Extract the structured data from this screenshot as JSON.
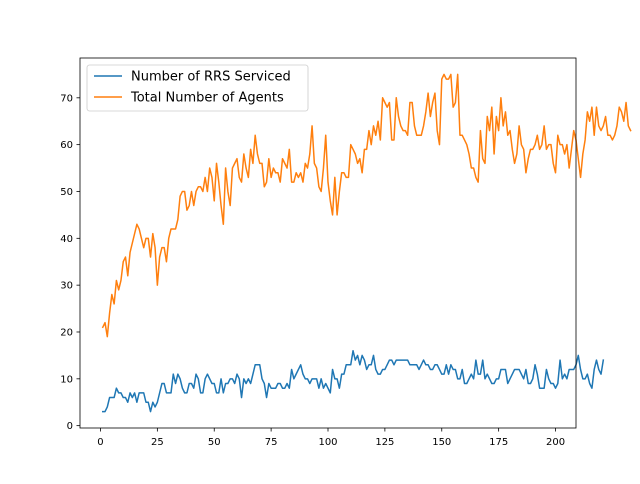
{
  "chart_data": {
    "type": "line",
    "title": "",
    "xlabel": "",
    "ylabel": "",
    "xlim": [
      -9,
      209
    ],
    "ylim": [
      -0.5,
      78.5
    ],
    "x_ticks": [
      0,
      25,
      50,
      75,
      100,
      125,
      150,
      175,
      200
    ],
    "y_ticks": [
      0,
      10,
      20,
      30,
      40,
      50,
      60,
      70
    ],
    "grid": false,
    "legend_position": "top-left",
    "series": [
      {
        "name": "Number of RRS Serviced",
        "color": "#1f77b4",
        "x_start": 1,
        "x_step": 1,
        "values": [
          3,
          3,
          4,
          6,
          6,
          6,
          8,
          7,
          7,
          6,
          6,
          5,
          7,
          6,
          7,
          5,
          7,
          7,
          7,
          5,
          5,
          3,
          5,
          4,
          5,
          7,
          9,
          9,
          7,
          7,
          7,
          11,
          9,
          11,
          10,
          8,
          7,
          7,
          9,
          9,
          8,
          11,
          10,
          7,
          7,
          10,
          11,
          10,
          9,
          9,
          7,
          7,
          10,
          7,
          9,
          9,
          10,
          10,
          9,
          11,
          10,
          6,
          10,
          9,
          10,
          9,
          11,
          13,
          13,
          13,
          10,
          9,
          6,
          9,
          8,
          8,
          8,
          9,
          9,
          8,
          8,
          9,
          8,
          12,
          10,
          11,
          12,
          13,
          11,
          10,
          10,
          9,
          10,
          10,
          10,
          8,
          10,
          8,
          9,
          8,
          7,
          12,
          10,
          10,
          8,
          11,
          11,
          13,
          13,
          13,
          16,
          14,
          15,
          13,
          15,
          14,
          12,
          13,
          13,
          15,
          12,
          11,
          11,
          12,
          12,
          13,
          14,
          14,
          13,
          14,
          14,
          14,
          14,
          14,
          14,
          13,
          13,
          13,
          13,
          12,
          13,
          14,
          13,
          13,
          12,
          12,
          13,
          13,
          12,
          11,
          11,
          13,
          11,
          13,
          12,
          12,
          10,
          10,
          12,
          9,
          9,
          10,
          11,
          10,
          14,
          11,
          11,
          14,
          10,
          11,
          10,
          9,
          9,
          10,
          10,
          12,
          12,
          12,
          9,
          10,
          11,
          12,
          12,
          12,
          11,
          10,
          12,
          9,
          9,
          10,
          13,
          11,
          8,
          8,
          8,
          12,
          10,
          9,
          9,
          8,
          9,
          14,
          10,
          11,
          10,
          12,
          12,
          12,
          13,
          15,
          12,
          10,
          10,
          11,
          9,
          8,
          12,
          14,
          12,
          11,
          14
        ],
        "values_note": ""
      },
      {
        "name": "Total Number of Agents",
        "color": "#ff7f0e",
        "x_start": 1,
        "x_step": 1,
        "values": [
          21,
          22,
          19,
          24,
          28,
          26,
          31,
          29,
          31,
          35,
          36,
          32,
          37,
          39,
          41,
          43,
          42,
          40,
          38,
          40,
          40,
          36,
          41,
          38,
          30,
          36,
          38,
          38,
          35,
          40,
          42,
          42,
          42,
          44,
          49,
          50,
          50,
          46,
          47,
          50,
          47,
          50,
          51,
          51,
          50,
          53,
          50,
          55,
          53,
          48,
          56,
          52,
          47,
          43,
          55,
          50,
          47,
          55,
          56,
          57,
          53,
          52,
          58,
          55,
          53,
          59,
          56,
          62,
          58,
          56,
          56,
          51,
          52,
          57,
          53,
          55,
          54,
          54,
          52,
          57,
          56,
          55,
          59,
          52,
          52,
          54,
          53,
          54,
          52,
          56,
          55,
          58,
          64,
          56,
          55,
          51,
          50,
          55,
          62,
          52,
          48,
          45,
          53,
          45,
          50,
          54,
          54,
          53,
          53,
          60,
          59,
          58,
          56,
          57,
          54,
          59,
          59,
          63,
          60,
          64,
          62,
          65,
          61,
          70,
          69,
          68,
          69,
          61,
          61,
          70,
          66,
          64,
          63,
          63,
          62,
          69,
          69,
          64,
          62,
          62,
          62,
          64,
          67,
          71,
          66,
          69,
          71,
          63,
          60,
          74,
          75,
          74,
          74,
          75,
          68,
          69,
          75,
          62,
          62,
          61,
          60,
          58,
          55,
          55,
          53,
          52,
          63,
          57,
          56,
          66,
          63,
          68,
          58,
          66,
          63,
          70,
          64,
          67,
          62,
          63,
          59,
          56,
          58,
          64,
          60,
          59,
          54,
          57,
          59,
          59,
          60,
          62,
          59,
          60,
          64,
          59,
          60,
          60,
          56,
          54,
          62,
          60,
          60,
          58,
          60,
          55,
          59,
          63,
          61,
          57,
          53,
          58,
          61,
          67,
          65,
          68,
          62,
          68,
          64,
          63,
          64,
          66,
          62,
          62,
          61,
          62,
          64,
          68,
          67,
          65,
          69,
          64,
          63
        ]
      }
    ]
  }
}
